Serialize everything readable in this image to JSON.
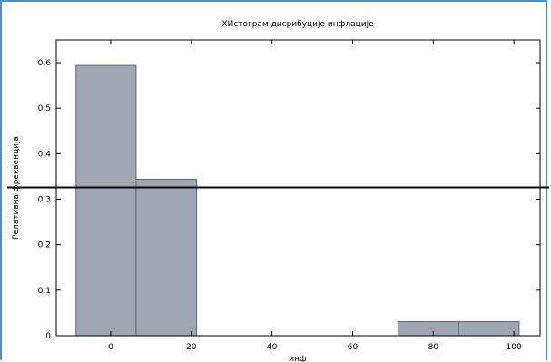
{
  "chart_data": {
    "type": "bar",
    "title": "ХИстограм дисрибуције инфлације",
    "xlabel": "инф",
    "ylabel": "Релативна фреквенција",
    "xlim": [
      -13.5,
      106.5
    ],
    "ylim": [
      0,
      0.65
    ],
    "x_ticks": [
      {
        "value": 0,
        "label": "0"
      },
      {
        "value": 20,
        "label": "20"
      },
      {
        "value": 40,
        "label": "40"
      },
      {
        "value": 60,
        "label": "60"
      },
      {
        "value": 80,
        "label": "80"
      },
      {
        "value": 100,
        "label": "100"
      }
    ],
    "y_ticks": [
      {
        "value": 0,
        "label": "0"
      },
      {
        "value": 0.1,
        "label": "0,1"
      },
      {
        "value": 0.2,
        "label": "0,2"
      },
      {
        "value": 0.3,
        "label": "0,3"
      },
      {
        "value": 0.4,
        "label": "0,4"
      },
      {
        "value": 0.5,
        "label": "0,5"
      },
      {
        "value": 0.6,
        "label": "0,6"
      }
    ],
    "bins": [
      {
        "x0": -8.6,
        "x1": 6.3,
        "value": 0.594
      },
      {
        "x0": 6.3,
        "x1": 21.3,
        "value": 0.344
      },
      {
        "x0": 71.3,
        "x1": 86.3,
        "value": 0.031
      },
      {
        "x0": 86.3,
        "x1": 101.3,
        "value": 0.031
      }
    ],
    "reference_line": {
      "value": 0.326
    },
    "bar_color": "#a0a5b4",
    "bar_edge_color": "#5c6a7c",
    "line_color": "#000000",
    "grid": false
  }
}
